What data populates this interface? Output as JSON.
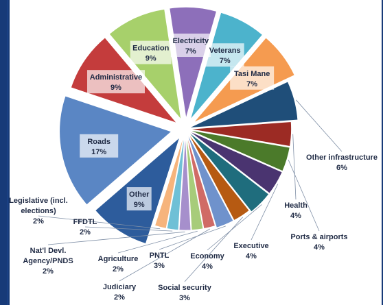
{
  "chart_data": {
    "type": "pie",
    "title": "",
    "slices": [
      {
        "label": "Education",
        "value": "9%",
        "share": 9,
        "color": "#a7d06b",
        "placement": "inside"
      },
      {
        "label": "Electricity",
        "value": "7%",
        "share": 7,
        "color": "#8d6fba",
        "placement": "inside"
      },
      {
        "label": "Veterans",
        "value": "7%",
        "share": 7,
        "color": "#4cb3cc",
        "placement": "inside"
      },
      {
        "label": "Tasi Mane",
        "value": "7%",
        "share": 7,
        "color": "#f59b50",
        "placement": "inside"
      },
      {
        "label": "Other infrastructure",
        "value": "6%",
        "share": 6,
        "color": "#1f4e79",
        "placement": "outside"
      },
      {
        "label": "Health",
        "value": "4%",
        "share": 4,
        "color": "#9c2b24",
        "placement": "outside"
      },
      {
        "label": "Ports & airports",
        "value": "4%",
        "share": 4,
        "color": "#4b7a2a",
        "placement": "outside"
      },
      {
        "label": "Executive",
        "value": "4%",
        "share": 4,
        "color": "#4a3470",
        "placement": "outside"
      },
      {
        "label": "Economy",
        "value": "4%",
        "share": 4,
        "color": "#1f6d7d",
        "placement": "outside"
      },
      {
        "label": "Social security",
        "value": "3%",
        "share": 3,
        "color": "#b65a12",
        "placement": "outside"
      },
      {
        "label": "PNTL",
        "value": "3%",
        "share": 3,
        "color": "#6f92cc",
        "placement": "outside"
      },
      {
        "label": "Judiciary",
        "value": "2%",
        "share": 2,
        "color": "#d06b66",
        "placement": "outside"
      },
      {
        "label": "Agriculture",
        "value": "2%",
        "share": 2,
        "color": "#a7cc7a",
        "placement": "outside"
      },
      {
        "label": "Nat'l Devl. Agency/PNDS",
        "value": "2%",
        "share": 2,
        "color": "#a68fcc",
        "placement": "outside"
      },
      {
        "label": "FFDTL",
        "value": "2%",
        "share": 2,
        "color": "#6fc0d6",
        "placement": "outside"
      },
      {
        "label": "Legislative (incl. elections)",
        "value": "2%",
        "share": 2,
        "color": "#f6b47c",
        "placement": "outside"
      },
      {
        "label": "Other",
        "value": "9%",
        "share": 9,
        "color": "#2d5c9c",
        "placement": "inside"
      },
      {
        "label": "Roads",
        "value": "17%",
        "share": 17,
        "color": "#5a86c4",
        "placement": "inside"
      },
      {
        "label": "Administrative",
        "value": "9%",
        "share": 9,
        "color": "#c43c3c",
        "placement": "inside"
      }
    ]
  }
}
